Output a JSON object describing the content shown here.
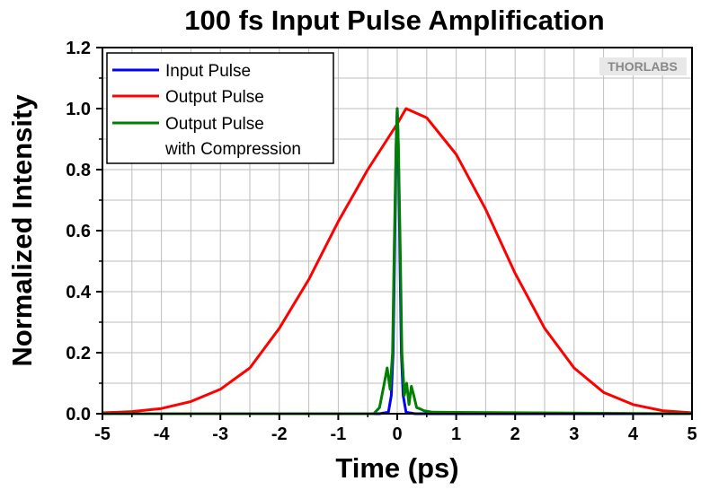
{
  "chart_data": {
    "type": "line",
    "title": "100 fs Input Pulse Amplification",
    "xlabel": "Time (ps)",
    "ylabel": "Normalized Intensity",
    "xlim": [
      -5,
      5
    ],
    "ylim": [
      0,
      1.2
    ],
    "x_ticks": [
      -5,
      -4,
      -3,
      -2,
      -1,
      0,
      1,
      2,
      3,
      4,
      5
    ],
    "y_ticks": [
      0.0,
      0.2,
      0.4,
      0.6,
      0.8,
      1.0,
      1.2
    ],
    "x_tick_labels": [
      "-5",
      "-4",
      "-3",
      "-2",
      "-1",
      "0",
      "1",
      "2",
      "3",
      "4",
      "5"
    ],
    "y_tick_labels": [
      "0.0",
      "0.2",
      "0.4",
      "0.6",
      "0.8",
      "1.0",
      "1.2"
    ],
    "grid": true,
    "legend_position": "top-left",
    "watermark": "THORLABS",
    "series": [
      {
        "name": "Input Pulse",
        "color": "#0000ff",
        "points": [
          [
            -5,
            0
          ],
          [
            -0.3,
            0
          ],
          [
            -0.15,
            0.005
          ],
          [
            -0.1,
            0.06
          ],
          [
            -0.07,
            0.2
          ],
          [
            -0.05,
            0.45
          ],
          [
            -0.03,
            0.72
          ],
          [
            -0.015,
            0.9
          ],
          [
            0,
            1.0
          ],
          [
            0.015,
            0.9
          ],
          [
            0.03,
            0.72
          ],
          [
            0.05,
            0.45
          ],
          [
            0.07,
            0.2
          ],
          [
            0.1,
            0.06
          ],
          [
            0.15,
            0.005
          ],
          [
            0.3,
            0
          ],
          [
            5,
            0
          ]
        ]
      },
      {
        "name": "Output Pulse",
        "color": "#ff0000",
        "points": [
          [
            -5,
            0.003
          ],
          [
            -4.5,
            0.007
          ],
          [
            -4,
            0.017
          ],
          [
            -3.5,
            0.04
          ],
          [
            -3,
            0.08
          ],
          [
            -2.5,
            0.15
          ],
          [
            -2,
            0.28
          ],
          [
            -1.5,
            0.44
          ],
          [
            -1,
            0.63
          ],
          [
            -0.5,
            0.8
          ],
          [
            0,
            0.95
          ],
          [
            0.15,
            1.0
          ],
          [
            0.5,
            0.97
          ],
          [
            1,
            0.85
          ],
          [
            1.5,
            0.67
          ],
          [
            2,
            0.46
          ],
          [
            2.5,
            0.28
          ],
          [
            3,
            0.15
          ],
          [
            3.5,
            0.07
          ],
          [
            4,
            0.03
          ],
          [
            4.5,
            0.01
          ],
          [
            5,
            0.003
          ]
        ]
      },
      {
        "name": "Output Pulse with Compression",
        "legend_lines": [
          "Output Pulse",
          "with Compression"
        ],
        "color": "#008000",
        "points": [
          [
            -5,
            0
          ],
          [
            -0.4,
            0
          ],
          [
            -0.3,
            0.02
          ],
          [
            -0.22,
            0.1
          ],
          [
            -0.17,
            0.15
          ],
          [
            -0.12,
            0.08
          ],
          [
            -0.08,
            0.2
          ],
          [
            -0.05,
            0.55
          ],
          [
            -0.02,
            0.88
          ],
          [
            0,
            1.0
          ],
          [
            0.02,
            0.88
          ],
          [
            0.05,
            0.55
          ],
          [
            0.08,
            0.2
          ],
          [
            0.12,
            0.06
          ],
          [
            0.16,
            0.1
          ],
          [
            0.2,
            0.03
          ],
          [
            0.24,
            0.09
          ],
          [
            0.28,
            0.06
          ],
          [
            0.33,
            0.02
          ],
          [
            0.4,
            0.015
          ],
          [
            0.45,
            0.01
          ],
          [
            0.6,
            0.005
          ],
          [
            5,
            0
          ]
        ]
      }
    ]
  }
}
